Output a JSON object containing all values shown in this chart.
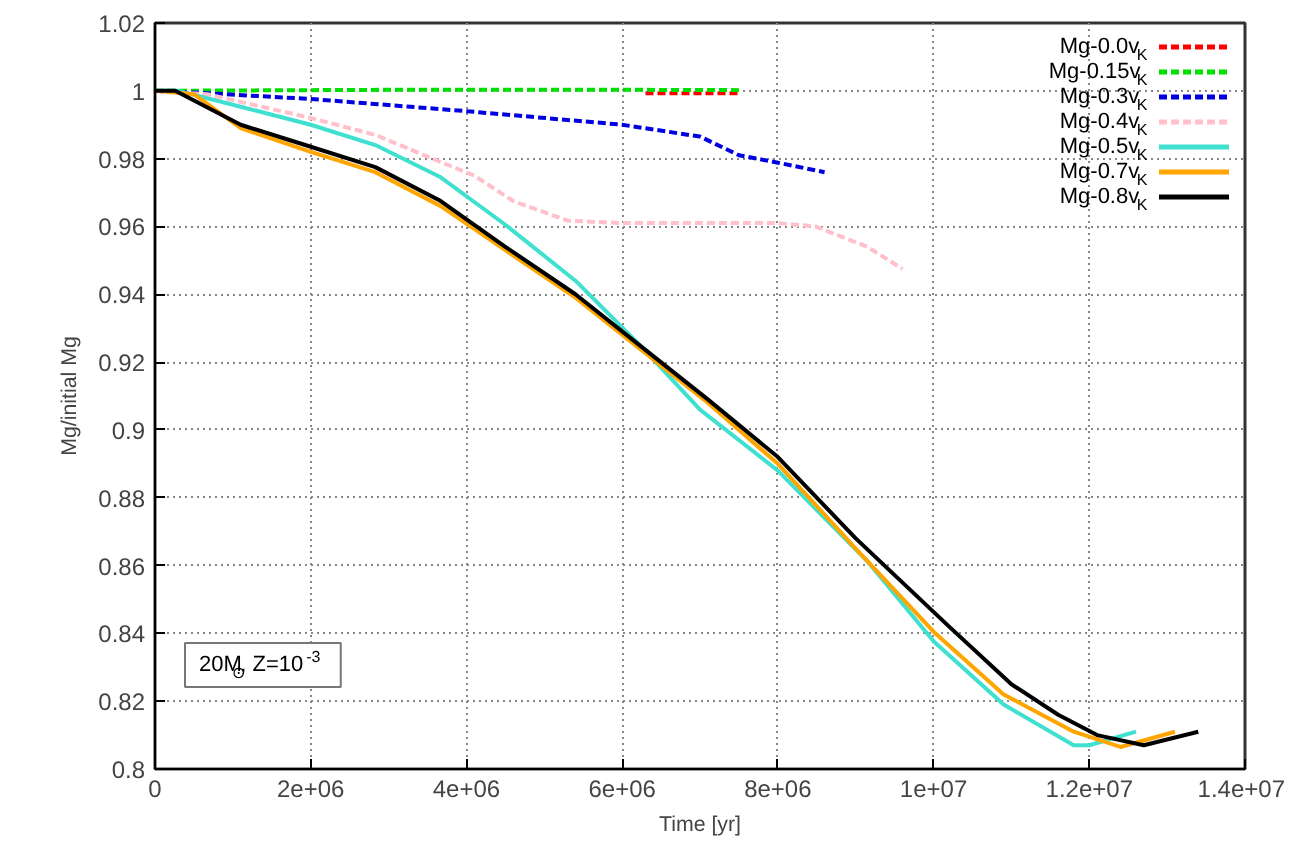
{
  "chart_data": {
    "type": "line",
    "xlabel": "Time [yr]",
    "ylabel": "Mg/initial Mg",
    "xlim": [
      0,
      14000000
    ],
    "ylim": [
      0.8,
      1.02
    ],
    "xticks": [
      {
        "value": 0,
        "label": "0"
      },
      {
        "value": 2000000,
        "label": "2e+06"
      },
      {
        "value": 4000000,
        "label": "4e+06"
      },
      {
        "value": 6000000,
        "label": "6e+06"
      },
      {
        "value": 8000000,
        "label": "8e+06"
      },
      {
        "value": 10000000,
        "label": "1e+07"
      },
      {
        "value": 12000000,
        "label": "1.2e+07"
      },
      {
        "value": 14000000,
        "label": "1.4e+07"
      }
    ],
    "yticks": [
      0.8,
      0.82,
      0.84,
      0.86,
      0.88,
      0.9,
      0.92,
      0.94,
      0.96,
      0.98,
      1,
      1.02
    ],
    "grid": true,
    "legend": "top right",
    "annotations": [
      "20M$_{⊙}$, Z=10$^{-3}$"
    ],
    "series": [
      {
        "name": "Mg-0.0v$_{K}$",
        "color": "#ff0000",
        "line_style": "dashed",
        "x": [
          6300000,
          7000000,
          7500000
        ],
        "values": [
          0.9993,
          0.9993,
          0.9993
        ]
      },
      {
        "name": "Mg-0.15v$_{K}$",
        "color": "#00e000",
        "line_style": "dashed",
        "x": [
          0,
          3000000,
          6000000,
          7500000
        ],
        "values": [
          1,
          1.0003,
          1.0003,
          1.0002
        ]
      },
      {
        "name": "Mg-0.3v$_{K}$",
        "color": "#0000e0",
        "line_style": "dashed",
        "x": [
          0,
          500000,
          2000000,
          4000000,
          6000000,
          7000000,
          7500000,
          8000000,
          8600000
        ],
        "values": [
          1,
          0.9995,
          0.9976,
          0.994,
          0.99,
          0.9865,
          0.981,
          0.9788,
          0.976
        ]
      },
      {
        "name": "Mg-0.4v$_{K}$",
        "color": "#ffc0cb",
        "line_style": "dashed",
        "x": [
          0,
          670000,
          2000000,
          2830000,
          3670000,
          4100000,
          4600000,
          5300000,
          6000000,
          8000000,
          8480000,
          9150000,
          9600000
        ],
        "values": [
          1,
          0.999,
          0.992,
          0.987,
          0.979,
          0.975,
          0.9675,
          0.9617,
          0.961,
          0.961,
          0.96,
          0.954,
          0.9475
        ]
      },
      {
        "name": "Mg-0.5v$_{K}$",
        "color": "#40e0d0",
        "line_style": "solid",
        "x": [
          0,
          300000,
          1100000,
          2000000,
          2830000,
          3670000,
          4500000,
          5400000,
          6250000,
          7000000,
          8000000,
          9160000,
          10000000,
          10900000,
          11800000,
          12000000,
          12600000
        ],
        "values": [
          1,
          1,
          0.9953,
          0.99,
          0.984,
          0.9745,
          0.9605,
          0.944,
          0.9245,
          0.906,
          0.888,
          0.861,
          0.8377,
          0.819,
          0.807,
          0.807,
          0.811
        ]
      },
      {
        "name": "Mg-0.7v$_{K}$",
        "color": "#ffa500",
        "line_style": "solid",
        "x": [
          0,
          500000,
          1100000,
          2000000,
          2830000,
          3670000,
          4500000,
          5400000,
          6250000,
          7100000,
          8000000,
          9000000,
          10000000,
          10900000,
          11800000,
          12400000,
          13100000
        ],
        "values": [
          1,
          0.999,
          0.989,
          0.982,
          0.976,
          0.966,
          0.953,
          0.939,
          0.9235,
          0.908,
          0.89,
          0.865,
          0.8405,
          0.822,
          0.811,
          0.8065,
          0.811
        ]
      },
      {
        "name": "Mg-0.8v$_{K}$",
        "color": "#000000",
        "line_style": "solid",
        "x": [
          0,
          260000,
          1100000,
          2000000,
          2830000,
          3670000,
          4500000,
          5400000,
          6250000,
          7100000,
          8000000,
          9000000,
          10200000,
          11000000,
          11600000,
          12100000,
          12700000,
          13400000
        ],
        "values": [
          1,
          1,
          0.99,
          0.9835,
          0.9775,
          0.9675,
          0.954,
          0.94,
          0.9245,
          0.909,
          0.892,
          0.868,
          0.842,
          0.825,
          0.816,
          0.81,
          0.807,
          0.811
        ]
      }
    ]
  }
}
